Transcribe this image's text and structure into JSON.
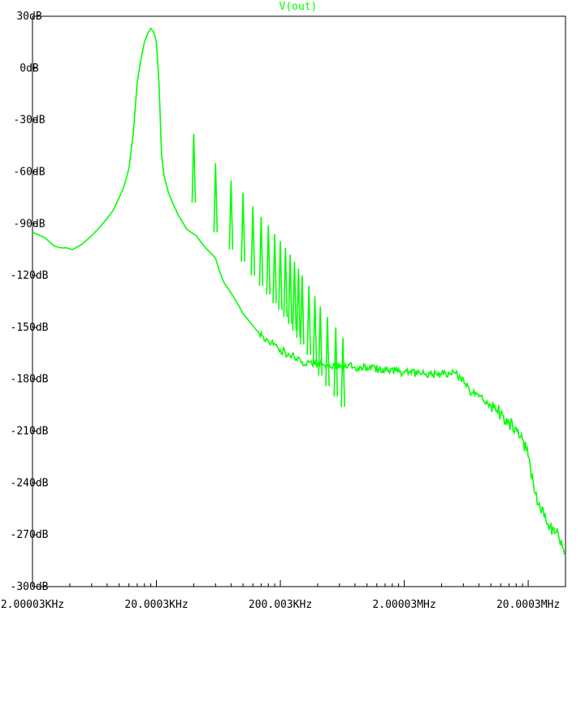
{
  "window": {
    "trace_label": "V(out)"
  },
  "colors": {
    "trace": "#00ff00",
    "axes": "#000000",
    "background": "#ffffff"
  },
  "chart_data": {
    "type": "line",
    "title": "V(out)",
    "xlabel": "",
    "ylabel": "",
    "x_scale": "log",
    "xlim": [
      2000.03,
      40000000
    ],
    "ylim": [
      -300,
      30
    ],
    "grid": false,
    "y_ticks": [
      30,
      0,
      -30,
      -60,
      -90,
      -120,
      -150,
      -180,
      -210,
      -240,
      -270,
      -300
    ],
    "y_tick_labels": [
      "30dB",
      "0dB",
      "-30dB",
      "-60dB",
      "-90dB",
      "-120dB",
      "-150dB",
      "-180dB",
      "-210dB",
      "-240dB",
      "-270dB",
      "-300dB"
    ],
    "x_ticks": [
      2000.03,
      20000.3,
      200003,
      2000030,
      20000300
    ],
    "x_tick_labels": [
      "2.00003KHz",
      "20.0003KHz",
      "200.003KHz",
      "2.00003MHz",
      "20.0003MHz"
    ],
    "series": [
      {
        "color": "#00ff00",
        "x": [
          2000,
          2500,
          3000,
          3400,
          3800,
          4200,
          5000,
          6000,
          7000,
          8000,
          9000,
          10000,
          11000,
          12000,
          13000,
          14000,
          15000,
          16000,
          17000,
          18000,
          19000,
          20000,
          21000,
          22000,
          23000,
          25000,
          27000,
          30000,
          35000,
          38000,
          40000,
          42000,
          45000,
          50000,
          60000,
          65000,
          70000,
          80000,
          90000,
          100000,
          130000,
          160000,
          200000,
          300000,
          500000,
          800000,
          1000000,
          1500000,
          2000000,
          3000000,
          4000000,
          5000000,
          6000000,
          7000000,
          8000000,
          10000000,
          12000000,
          14000000,
          16000000,
          18000000,
          20000000,
          22000000,
          25000000,
          30000000,
          35000000,
          40000000
        ],
        "y": [
          -95,
          -98,
          -103,
          -104,
          -104,
          -105,
          -102,
          -97,
          -92,
          -87,
          -82,
          -75,
          -68,
          -58,
          -38,
          -8,
          5,
          15,
          20,
          23,
          21,
          15,
          -10,
          -50,
          -62,
          -72,
          -78,
          -85,
          -93,
          -95,
          -96,
          -97,
          -100,
          -104,
          -110,
          -118,
          -124,
          -130,
          -136,
          -142,
          -152,
          -158,
          -163,
          -170,
          -172,
          -173,
          -173,
          -175,
          -176,
          -177,
          -177,
          -176,
          -180,
          -188,
          -190,
          -195,
          -200,
          -205,
          -208,
          -215,
          -225,
          -240,
          -255,
          -265,
          -270,
          -282
        ]
      }
    ],
    "harmonics": [
      {
        "x": 40000,
        "y": -38
      },
      {
        "x": 60000,
        "y": -55
      },
      {
        "x": 80000,
        "y": -65
      },
      {
        "x": 100000,
        "y": -72
      },
      {
        "x": 120000,
        "y": -80
      },
      {
        "x": 140000,
        "y": -86
      },
      {
        "x": 160000,
        "y": -91
      },
      {
        "x": 180000,
        "y": -96
      },
      {
        "x": 200000,
        "y": -100
      },
      {
        "x": 220000,
        "y": -104
      },
      {
        "x": 240000,
        "y": -108
      },
      {
        "x": 260000,
        "y": -112
      },
      {
        "x": 280000,
        "y": -116
      },
      {
        "x": 300000,
        "y": -120
      },
      {
        "x": 340000,
        "y": -126
      },
      {
        "x": 380000,
        "y": -132
      },
      {
        "x": 420000,
        "y": -138
      },
      {
        "x": 480000,
        "y": -144
      },
      {
        "x": 560000,
        "y": -150
      },
      {
        "x": 640000,
        "y": -156
      }
    ]
  }
}
